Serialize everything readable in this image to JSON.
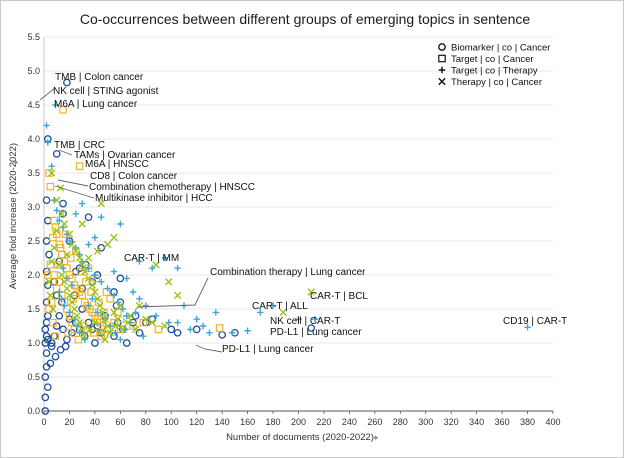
{
  "chart_data": {
    "type": "scatter",
    "title": "Co-occurrences between different groups of emerging topics in sentence",
    "xlabel": "Number of documents (2020-2022)",
    "ylabel": "Average fold increase (2020-2022)",
    "xlim": [
      0,
      400
    ],
    "ylim": [
      0,
      5.5
    ],
    "xticks": [
      0,
      20,
      40,
      60,
      80,
      100,
      120,
      140,
      160,
      180,
      200,
      220,
      240,
      260,
      280,
      300,
      320,
      340,
      360,
      380,
      400
    ],
    "yticks": [
      0.0,
      0.5,
      1.0,
      1.5,
      2.0,
      2.5,
      3.0,
      3.5,
      4.0,
      4.5,
      5.0,
      5.5
    ],
    "ytick_labels": [
      "0.0",
      "0.5",
      "1.0",
      "1.5",
      "2.0",
      "2.5",
      "3.0",
      "3.5",
      "4.0",
      "4.5",
      "5.0",
      "5.5"
    ],
    "legend_position": "top-right",
    "series": [
      {
        "name": "Biomarker | co | Cancer",
        "marker": "circle",
        "color": "#1f4e9c",
        "points": [
          [
            18,
            4.83
          ],
          [
            3,
            4.0
          ],
          [
            10,
            3.78
          ],
          [
            2,
            3.1
          ],
          [
            3,
            2.8
          ],
          [
            2,
            2.5
          ],
          [
            4,
            2.3
          ],
          [
            2,
            2.05
          ],
          [
            3,
            1.85
          ],
          [
            2,
            1.6
          ],
          [
            3,
            1.4
          ],
          [
            2,
            1.3
          ],
          [
            1,
            1.2
          ],
          [
            2,
            1.1
          ],
          [
            3,
            1.05
          ],
          [
            1,
            1.0
          ],
          [
            2,
            0.85
          ],
          [
            2,
            0.65
          ],
          [
            1,
            0.5
          ],
          [
            3,
            0.35
          ],
          [
            1,
            0.2
          ],
          [
            1,
            0.0
          ],
          [
            6,
            1.0
          ],
          [
            8,
            1.1
          ],
          [
            10,
            1.25
          ],
          [
            12,
            1.4
          ],
          [
            14,
            1.6
          ],
          [
            15,
            1.2
          ],
          [
            18,
            1.05
          ],
          [
            20,
            1.35
          ],
          [
            22,
            1.15
          ],
          [
            25,
            1.3
          ],
          [
            28,
            1.2
          ],
          [
            30,
            1.5
          ],
          [
            32,
            1.1
          ],
          [
            35,
            1.3
          ],
          [
            38,
            1.2
          ],
          [
            40,
            1.0
          ],
          [
            42,
            1.25
          ],
          [
            45,
            1.15
          ],
          [
            48,
            1.4
          ],
          [
            50,
            1.2
          ],
          [
            55,
            1.1
          ],
          [
            58,
            1.3
          ],
          [
            60,
            1.6
          ],
          [
            62,
            1.2
          ],
          [
            65,
            1.0
          ],
          [
            70,
            1.3
          ],
          [
            75,
            1.15
          ],
          [
            85,
            1.35
          ],
          [
            100,
            1.2
          ],
          [
            105,
            1.15
          ],
          [
            120,
            1.2
          ],
          [
            150,
            1.15
          ],
          [
            140,
            1.12
          ],
          [
            25,
            2.05
          ],
          [
            35,
            2.85
          ],
          [
            28,
            2.1
          ],
          [
            42,
            2.0
          ],
          [
            15,
            2.9
          ],
          [
            55,
            1.75
          ],
          [
            57,
            1.55
          ],
          [
            10,
            1.7
          ],
          [
            12,
            2.2
          ],
          [
            8,
            1.9
          ],
          [
            20,
            2.5
          ],
          [
            24,
            1.7
          ],
          [
            30,
            1.8
          ],
          [
            33,
            2.15
          ],
          [
            38,
            1.9
          ],
          [
            45,
            2.4
          ],
          [
            60,
            1.95
          ],
          [
            72,
            1.4
          ],
          [
            80,
            1.3
          ],
          [
            15,
            3.05
          ],
          [
            6,
            0.95
          ],
          [
            5,
            0.7
          ],
          [
            9,
            0.8
          ],
          [
            13,
            0.9
          ],
          [
            17,
            0.95
          ],
          [
            210,
            1.22
          ]
        ]
      },
      {
        "name": "Target | co | Cancer",
        "marker": "square",
        "color": "#f0b429",
        "points": [
          [
            15,
            4.43
          ],
          [
            28,
            3.6
          ],
          [
            4,
            3.5
          ],
          [
            5,
            3.3
          ],
          [
            8,
            2.8
          ],
          [
            10,
            2.6
          ],
          [
            12,
            2.45
          ],
          [
            14,
            2.3
          ],
          [
            16,
            2.2
          ],
          [
            18,
            2.1
          ],
          [
            20,
            2.0
          ],
          [
            22,
            1.95
          ],
          [
            24,
            1.85
          ],
          [
            26,
            1.8
          ],
          [
            28,
            1.75
          ],
          [
            30,
            1.7
          ],
          [
            32,
            1.6
          ],
          [
            34,
            1.55
          ],
          [
            36,
            1.5
          ],
          [
            38,
            1.45
          ],
          [
            40,
            1.4
          ],
          [
            42,
            1.35
          ],
          [
            44,
            1.3
          ],
          [
            46,
            1.25
          ],
          [
            50,
            1.2
          ],
          [
            55,
            1.3
          ],
          [
            60,
            1.2
          ],
          [
            12,
            1.9
          ],
          [
            14,
            1.7
          ],
          [
            16,
            1.6
          ],
          [
            18,
            1.5
          ],
          [
            20,
            1.4
          ],
          [
            22,
            1.3
          ],
          [
            24,
            1.2
          ],
          [
            8,
            2.0
          ],
          [
            10,
            1.8
          ],
          [
            6,
            1.6
          ],
          [
            7,
            1.3
          ],
          [
            9,
            1.1
          ],
          [
            11,
            2.15
          ],
          [
            13,
            2.4
          ],
          [
            17,
            2.6
          ],
          [
            19,
            1.15
          ],
          [
            21,
            2.25
          ],
          [
            23,
            1.65
          ],
          [
            25,
            2.35
          ],
          [
            27,
            1.05
          ],
          [
            29,
            2.05
          ],
          [
            31,
            1.25
          ],
          [
            33,
            1.9
          ],
          [
            35,
            2.1
          ],
          [
            37,
            1.75
          ],
          [
            39,
            1.15
          ],
          [
            41,
            1.95
          ],
          [
            43,
            1.6
          ],
          [
            45,
            1.1
          ],
          [
            47,
            1.45
          ],
          [
            49,
            1.75
          ],
          [
            52,
            1.65
          ],
          [
            58,
            1.45
          ],
          [
            65,
            1.35
          ],
          [
            70,
            1.25
          ],
          [
            90,
            1.2
          ],
          [
            78,
            1.3
          ],
          [
            138,
            1.22
          ],
          [
            5,
            2.15
          ],
          [
            7,
            2.55
          ],
          [
            9,
            2.7
          ],
          [
            3,
            2.0
          ],
          [
            4,
            1.5
          ]
        ]
      },
      {
        "name": "Target | co | Therapy",
        "marker": "plus",
        "color": "#3aa6dc",
        "points": [
          [
            9,
            4.5
          ],
          [
            2,
            4.2
          ],
          [
            3,
            3.95
          ],
          [
            6,
            3.6
          ],
          [
            8,
            3.1
          ],
          [
            10,
            2.95
          ],
          [
            12,
            2.8
          ],
          [
            15,
            2.7
          ],
          [
            18,
            2.6
          ],
          [
            20,
            2.5
          ],
          [
            25,
            2.4
          ],
          [
            28,
            2.3
          ],
          [
            30,
            2.2
          ],
          [
            35,
            2.1
          ],
          [
            40,
            2.0
          ],
          [
            45,
            1.9
          ],
          [
            50,
            1.8
          ],
          [
            55,
            1.7
          ],
          [
            58,
            1.6
          ],
          [
            62,
            1.5
          ],
          [
            65,
            1.4
          ],
          [
            68,
            1.3
          ],
          [
            70,
            1.75
          ],
          [
            75,
            1.65
          ],
          [
            80,
            1.55
          ],
          [
            85,
            2.1
          ],
          [
            95,
            2.25
          ],
          [
            105,
            2.1
          ],
          [
            110,
            1.55
          ],
          [
            120,
            1.35
          ],
          [
            125,
            1.25
          ],
          [
            135,
            1.45
          ],
          [
            148,
            1.15
          ],
          [
            160,
            1.18
          ],
          [
            170,
            1.45
          ],
          [
            180,
            1.55
          ],
          [
            200,
            1.35
          ],
          [
            213,
            1.35
          ],
          [
            380,
            1.23
          ],
          [
            60,
            2.75
          ],
          [
            45,
            2.85
          ],
          [
            30,
            3.05
          ],
          [
            25,
            2.9
          ],
          [
            15,
            2.1
          ],
          [
            18,
            1.95
          ],
          [
            22,
            1.85
          ],
          [
            12,
            1.75
          ],
          [
            14,
            1.65
          ],
          [
            16,
            1.55
          ],
          [
            20,
            1.45
          ],
          [
            24,
            1.35
          ],
          [
            26,
            1.25
          ],
          [
            28,
            1.15
          ],
          [
            32,
            1.05
          ],
          [
            35,
            1.55
          ],
          [
            38,
            1.65
          ],
          [
            42,
            1.45
          ],
          [
            48,
            1.35
          ],
          [
            52,
            1.25
          ],
          [
            56,
            1.15
          ],
          [
            60,
            1.05
          ],
          [
            64,
            1.2
          ],
          [
            72,
            1.45
          ],
          [
            78,
            1.1
          ],
          [
            88,
            1.4
          ],
          [
            98,
            1.3
          ],
          [
            105,
            1.3
          ],
          [
            115,
            1.2
          ],
          [
            130,
            1.15
          ],
          [
            55,
            2.05
          ],
          [
            65,
            1.95
          ],
          [
            75,
            2.2
          ],
          [
            40,
            2.55
          ],
          [
            35,
            2.45
          ]
        ]
      },
      {
        "name": "Therapy | co | Cancer",
        "marker": "x",
        "color": "#9ac31c",
        "points": [
          [
            6,
            3.5
          ],
          [
            13,
            3.28
          ],
          [
            10,
            3.1
          ],
          [
            14,
            2.9
          ],
          [
            16,
            2.75
          ],
          [
            20,
            2.6
          ],
          [
            22,
            2.45
          ],
          [
            25,
            2.35
          ],
          [
            28,
            2.25
          ],
          [
            30,
            2.15
          ],
          [
            32,
            2.05
          ],
          [
            35,
            1.95
          ],
          [
            38,
            1.85
          ],
          [
            40,
            1.75
          ],
          [
            42,
            1.65
          ],
          [
            44,
            1.55
          ],
          [
            46,
            1.45
          ],
          [
            48,
            1.35
          ],
          [
            50,
            1.25
          ],
          [
            55,
            1.45
          ],
          [
            58,
            1.35
          ],
          [
            60,
            1.55
          ],
          [
            68,
            1.4
          ],
          [
            75,
            1.55
          ],
          [
            88,
            2.15
          ],
          [
            98,
            1.9
          ],
          [
            105,
            1.7
          ],
          [
            188,
            1.45
          ],
          [
            210,
            1.75
          ],
          [
            45,
            3.05
          ],
          [
            30,
            2.75
          ],
          [
            18,
            2.3
          ],
          [
            12,
            2.15
          ],
          [
            14,
            2.0
          ],
          [
            16,
            1.9
          ],
          [
            18,
            1.8
          ],
          [
            20,
            1.7
          ],
          [
            22,
            1.6
          ],
          [
            24,
            1.5
          ],
          [
            26,
            1.4
          ],
          [
            28,
            1.3
          ],
          [
            30,
            1.2
          ],
          [
            32,
            1.1
          ],
          [
            36,
            1.2
          ],
          [
            40,
            1.3
          ],
          [
            44,
            1.15
          ],
          [
            48,
            1.05
          ],
          [
            52,
            1.15
          ],
          [
            56,
            1.25
          ],
          [
            62,
            1.2
          ],
          [
            66,
            1.3
          ],
          [
            72,
            1.2
          ],
          [
            80,
            1.35
          ],
          [
            85,
            1.3
          ],
          [
            95,
            1.25
          ],
          [
            50,
            2.45
          ],
          [
            55,
            2.55
          ],
          [
            42,
            2.35
          ],
          [
            35,
            2.25
          ],
          [
            8,
            2.4
          ],
          [
            10,
            2.65
          ],
          [
            6,
            2.2
          ],
          [
            4,
            1.9
          ],
          [
            5,
            1.7
          ],
          [
            7,
            1.5
          ]
        ]
      }
    ],
    "annotations": [
      {
        "text": "TMB | Colon cancer",
        "x": 18,
        "y": 4.83
      },
      {
        "text": "NK cell | STING agonist",
        "x": 9,
        "y": 4.5
      },
      {
        "text": "M6A | Lung cancer",
        "x": 15,
        "y": 4.43
      },
      {
        "text": "TMB | CRC",
        "x": 3,
        "y": 4.0
      },
      {
        "text": "TAMs | Ovarian cancer",
        "x": 10,
        "y": 3.78
      },
      {
        "text": "M6A | HNSCC",
        "x": 28,
        "y": 3.6
      },
      {
        "text": "CD8 | Colon cancer",
        "x": 6,
        "y": 3.5
      },
      {
        "text": "Combination chemotherapy | HNSCC",
        "x": 13,
        "y": 3.28
      },
      {
        "text": "Multikinase inhibitor | HCC",
        "x": 10,
        "y": 3.1
      },
      {
        "text": "CAR-T | MM",
        "x": 88,
        "y": 2.15
      },
      {
        "text": "Combination therapy | Lung cancer",
        "x": 75,
        "y": 1.55
      },
      {
        "text": "CAR-T | BCL",
        "x": 210,
        "y": 1.75
      },
      {
        "text": "CAR-T | ALL",
        "x": 188,
        "y": 1.45
      },
      {
        "text": "NK cell | CAR-T",
        "x": 213,
        "y": 1.35
      },
      {
        "text": "PD-L1 | Lung cancer",
        "x": 210,
        "y": 1.22
      },
      {
        "text": "PD-L1 | Lung cancer",
        "x": 138,
        "y": 1.22
      },
      {
        "text": "CD19 | CAR-T",
        "x": 380,
        "y": 1.23
      }
    ]
  }
}
